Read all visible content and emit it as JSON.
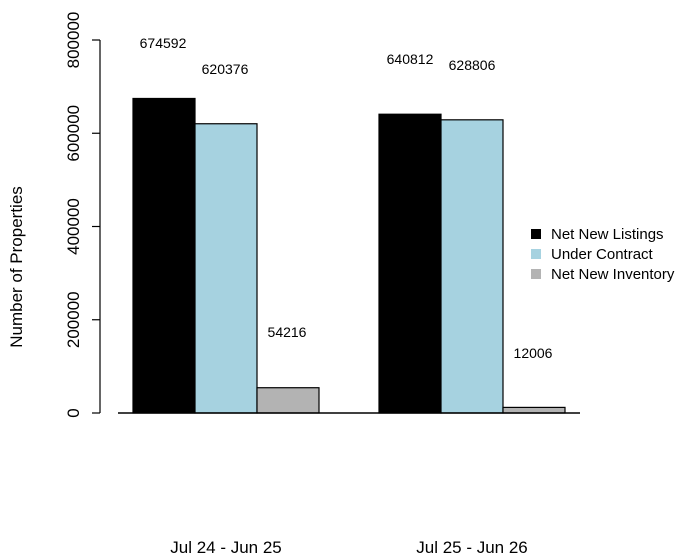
{
  "chart_data": {
    "type": "bar",
    "title": "",
    "xlabel": "",
    "ylabel": "Number of Properties",
    "categories": [
      "Jul 24 - Jun 25",
      "Jul 25 - Jun 26"
    ],
    "series": [
      {
        "name": "Net New Listings",
        "color": "#000000",
        "values": [
          674592,
          640812
        ]
      },
      {
        "name": "Under Contract",
        "color": "#a6d2e0",
        "values": [
          620376,
          628806
        ]
      },
      {
        "name": "Net New Inventory",
        "color": "#b3b3b3",
        "values": [
          54216,
          12006
        ]
      }
    ],
    "data_labels": [
      [
        "674592",
        "620376",
        "54216"
      ],
      [
        "640812",
        "628806",
        "12006"
      ]
    ],
    "yticks": [
      0,
      200000,
      400000,
      600000,
      800000
    ],
    "ytick_labels": [
      "0",
      "200000",
      "400000",
      "600000",
      "800000"
    ],
    "ylim": [
      0,
      800000
    ],
    "grid": false,
    "legend_position": "right"
  }
}
